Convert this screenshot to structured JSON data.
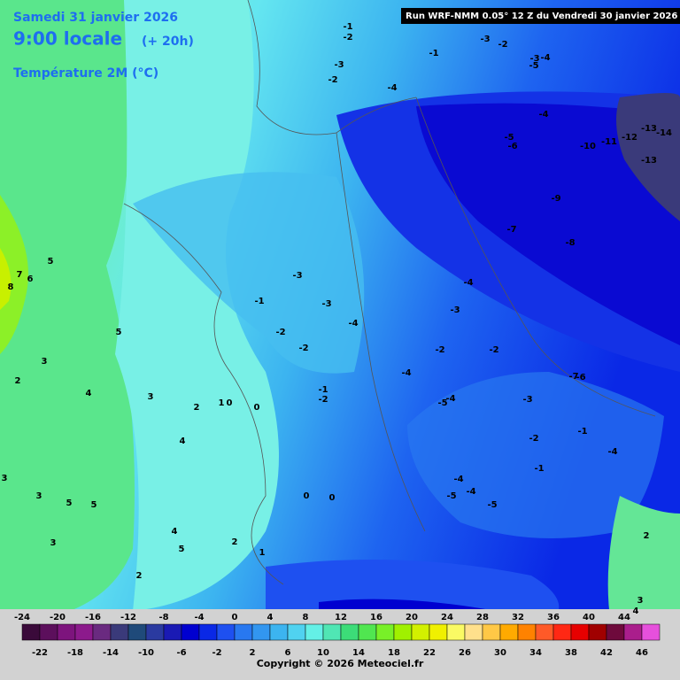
{
  "header": {
    "date": "Samedi 31 janvier 2026",
    "time": "9:00 locale",
    "offset": "(+ 20h)",
    "variable": "Température 2M (°C)",
    "run": "Run WRF-NMM 0.05° 12 Z du Vendredi 30 janvier 2026"
  },
  "scale": {
    "top_labels": [
      -24,
      -20,
      -16,
      -12,
      -8,
      -4,
      0,
      4,
      8,
      12,
      16,
      20,
      24,
      28,
      32,
      36,
      40,
      44
    ],
    "bottom_labels": [
      -22,
      -18,
      -14,
      -10,
      -6,
      -2,
      2,
      6,
      10,
      14,
      18,
      22,
      26,
      30,
      34,
      38,
      42,
      46
    ],
    "colors": [
      "#3a0a3a",
      "#5c0f5c",
      "#7d147d",
      "#8c1a8c",
      "#6a2a80",
      "#3a3a7a",
      "#1f4a7a",
      "#2a3aa0",
      "#1a1ab4",
      "#0000d0",
      "#0a28e6",
      "#1e50f0",
      "#2878f0",
      "#3296f0",
      "#3cb4f0",
      "#50d2f0",
      "#64f0e6",
      "#50e6b4",
      "#3cdc78",
      "#50e650",
      "#78f028",
      "#a0f000",
      "#d2f000",
      "#f0f000",
      "#fafa64",
      "#ffe08c",
      "#ffc846",
      "#ffaa00",
      "#ff8200",
      "#ff5a28",
      "#ff2814",
      "#e60000",
      "#a00000",
      "#6e0a3c",
      "#aa1e8c",
      "#e650dc"
    ]
  },
  "map_labels": [
    "-1",
    "-2",
    "-3",
    "-2",
    "-1",
    "-3",
    "-4",
    "-5",
    "-3",
    "-4",
    "-2",
    "-4",
    "-13",
    "-14",
    "-12",
    "-11",
    "-10",
    "-13",
    "-5",
    "-6",
    "-9",
    "-7",
    "-8",
    "-4",
    "-3",
    "-3",
    "-3",
    "-1",
    "-4",
    "-2",
    "-2",
    "-2",
    "-2",
    "-4",
    "-1",
    "-2",
    "-5",
    "-4",
    "-3",
    "-7",
    "-6",
    "5",
    "7",
    "6",
    "8",
    "5",
    "3",
    "2",
    "4",
    "3",
    "2",
    "1",
    "0",
    "0",
    "4",
    "3",
    "3",
    "5",
    "5",
    "3",
    "4",
    "5",
    "2",
    "2",
    "1",
    "0",
    "0",
    "-2",
    "-1",
    "-4",
    "-1",
    "-4",
    "-4",
    "-5",
    "-5",
    "2",
    "3",
    "4"
  ],
  "footer": "Copyright © 2026 Meteociel.fr"
}
